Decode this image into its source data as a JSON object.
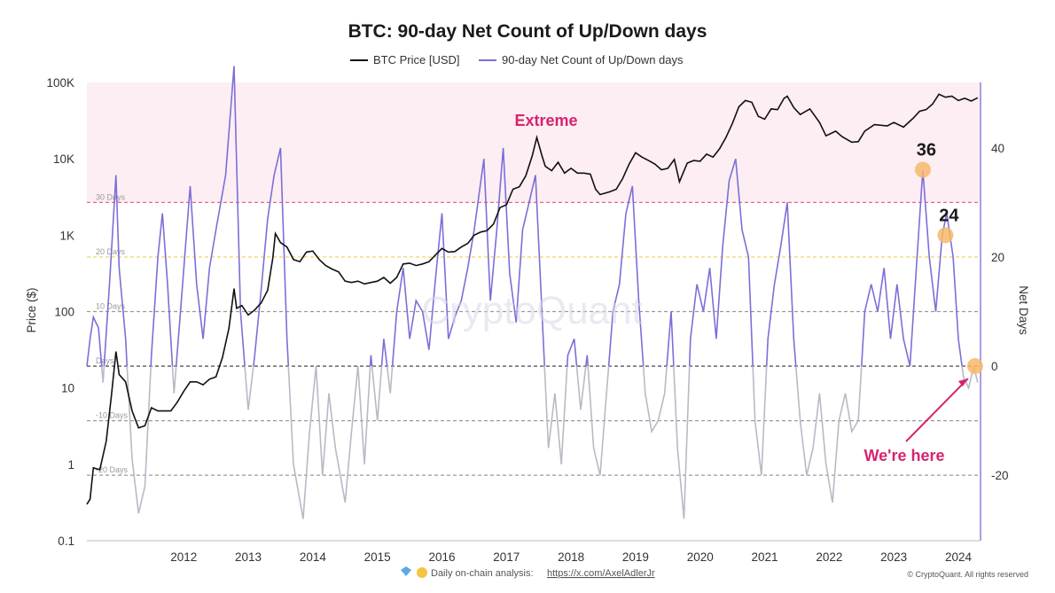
{
  "chart_data": {
    "type": "line",
    "title": "BTC: 90-day Net Count of Up/Down days",
    "legend": [
      "BTC Price [USD]",
      "90-day Net Count of Up/Down days"
    ],
    "legend_placement": "top-center",
    "x_ticks": [
      "2012",
      "2013",
      "2014",
      "2015",
      "2016",
      "2017",
      "2018",
      "2019",
      "2020",
      "2021",
      "2022",
      "2023",
      "2024"
    ],
    "xlim": [
      2011.0,
      2024.83
    ],
    "y_left": {
      "label": "Price ($)",
      "scale": "log",
      "range": [
        0.1,
        100000
      ],
      "ticks": [
        "0.1",
        "1",
        "10",
        "100",
        "1K",
        "10K",
        "100K"
      ]
    },
    "y_right": {
      "label": "Net Days",
      "range": [
        -32,
        52
      ],
      "ticks": [
        "-20",
        "0",
        "20",
        "40"
      ]
    },
    "threshold_lines": [
      {
        "label": "30 Days",
        "value": 30,
        "color": "#e06a8c"
      },
      {
        "label": "20 Days",
        "value": 20,
        "color": "#e8d35a"
      },
      {
        "label": "10 Days",
        "value": 10,
        "color": "#9a9a9a"
      },
      {
        "label": "Days",
        "value": 0,
        "color": "#333333"
      },
      {
        "label": "-10 Days",
        "value": -10,
        "color": "#9a9a9a"
      },
      {
        "label": "-20 Days",
        "value": -20,
        "color": "#9a9a9a"
      }
    ],
    "extreme_zone": {
      "label": "Extreme",
      "from": 30,
      "color": "#fdeef3"
    },
    "series": [
      {
        "name": "BTC Price [USD]",
        "axis": "left",
        "color": "#111111",
        "points": [
          [
            2011.0,
            0.3
          ],
          [
            2011.05,
            0.35
          ],
          [
            2011.1,
            0.9
          ],
          [
            2011.2,
            0.85
          ],
          [
            2011.3,
            2
          ],
          [
            2011.38,
            8
          ],
          [
            2011.45,
            30
          ],
          [
            2011.5,
            15
          ],
          [
            2011.6,
            12
          ],
          [
            2011.7,
            5
          ],
          [
            2011.8,
            3
          ],
          [
            2011.9,
            3.2
          ],
          [
            2012.0,
            5.5
          ],
          [
            2012.1,
            5
          ],
          [
            2012.2,
            5
          ],
          [
            2012.3,
            5
          ],
          [
            2012.4,
            6.5
          ],
          [
            2012.5,
            9
          ],
          [
            2012.6,
            12
          ],
          [
            2012.7,
            12
          ],
          [
            2012.8,
            11
          ],
          [
            2012.9,
            13
          ],
          [
            2013.0,
            14
          ],
          [
            2013.1,
            25
          ],
          [
            2013.2,
            60
          ],
          [
            2013.28,
            200
          ],
          [
            2013.32,
            110
          ],
          [
            2013.4,
            120
          ],
          [
            2013.5,
            90
          ],
          [
            2013.6,
            105
          ],
          [
            2013.7,
            130
          ],
          [
            2013.8,
            190
          ],
          [
            2013.88,
            500
          ],
          [
            2013.92,
            1050
          ],
          [
            2014.0,
            800
          ],
          [
            2014.1,
            700
          ],
          [
            2014.2,
            480
          ],
          [
            2014.3,
            450
          ],
          [
            2014.4,
            600
          ],
          [
            2014.5,
            620
          ],
          [
            2014.6,
            480
          ],
          [
            2014.7,
            400
          ],
          [
            2014.8,
            360
          ],
          [
            2014.9,
            330
          ],
          [
            2015.0,
            250
          ],
          [
            2015.1,
            240
          ],
          [
            2015.2,
            250
          ],
          [
            2015.3,
            230
          ],
          [
            2015.4,
            240
          ],
          [
            2015.5,
            250
          ],
          [
            2015.6,
            280
          ],
          [
            2015.7,
            235
          ],
          [
            2015.8,
            280
          ],
          [
            2015.9,
            420
          ],
          [
            2016.0,
            430
          ],
          [
            2016.1,
            400
          ],
          [
            2016.2,
            420
          ],
          [
            2016.3,
            450
          ],
          [
            2016.4,
            550
          ],
          [
            2016.5,
            670
          ],
          [
            2016.6,
            600
          ],
          [
            2016.7,
            610
          ],
          [
            2016.8,
            700
          ],
          [
            2016.9,
            780
          ],
          [
            2017.0,
            1000
          ],
          [
            2017.1,
            1100
          ],
          [
            2017.2,
            1150
          ],
          [
            2017.3,
            1400
          ],
          [
            2017.4,
            2300
          ],
          [
            2017.5,
            2500
          ],
          [
            2017.6,
            4000
          ],
          [
            2017.7,
            4300
          ],
          [
            2017.8,
            6000
          ],
          [
            2017.9,
            11000
          ],
          [
            2017.97,
            19000
          ],
          [
            2018.05,
            11000
          ],
          [
            2018.1,
            8000
          ],
          [
            2018.2,
            7000
          ],
          [
            2018.3,
            9000
          ],
          [
            2018.4,
            6500
          ],
          [
            2018.5,
            7500
          ],
          [
            2018.6,
            6500
          ],
          [
            2018.7,
            6500
          ],
          [
            2018.8,
            6300
          ],
          [
            2018.88,
            4000
          ],
          [
            2018.95,
            3400
          ],
          [
            2019.1,
            3700
          ],
          [
            2019.2,
            4000
          ],
          [
            2019.3,
            5500
          ],
          [
            2019.4,
            8500
          ],
          [
            2019.5,
            12000
          ],
          [
            2019.6,
            10500
          ],
          [
            2019.7,
            9500
          ],
          [
            2019.8,
            8500
          ],
          [
            2019.9,
            7200
          ],
          [
            2020.0,
            7500
          ],
          [
            2020.1,
            9800
          ],
          [
            2020.18,
            5000
          ],
          [
            2020.3,
            8800
          ],
          [
            2020.4,
            9500
          ],
          [
            2020.5,
            9300
          ],
          [
            2020.6,
            11500
          ],
          [
            2020.7,
            10500
          ],
          [
            2020.8,
            13500
          ],
          [
            2020.9,
            19000
          ],
          [
            2021.0,
            29000
          ],
          [
            2021.1,
            48000
          ],
          [
            2021.2,
            58000
          ],
          [
            2021.3,
            55000
          ],
          [
            2021.4,
            36000
          ],
          [
            2021.5,
            33000
          ],
          [
            2021.6,
            45000
          ],
          [
            2021.7,
            44000
          ],
          [
            2021.8,
            62000
          ],
          [
            2021.85,
            66000
          ],
          [
            2021.95,
            47000
          ],
          [
            2022.05,
            38000
          ],
          [
            2022.2,
            45000
          ],
          [
            2022.35,
            30000
          ],
          [
            2022.45,
            20000
          ],
          [
            2022.6,
            23000
          ],
          [
            2022.7,
            19500
          ],
          [
            2022.85,
            16500
          ],
          [
            2022.95,
            16800
          ],
          [
            2023.05,
            23000
          ],
          [
            2023.2,
            28000
          ],
          [
            2023.4,
            27000
          ],
          [
            2023.5,
            30000
          ],
          [
            2023.65,
            26000
          ],
          [
            2023.8,
            34000
          ],
          [
            2023.9,
            42000
          ],
          [
            2024.0,
            44000
          ],
          [
            2024.1,
            52000
          ],
          [
            2024.2,
            70000
          ],
          [
            2024.3,
            64000
          ],
          [
            2024.4,
            66000
          ],
          [
            2024.5,
            58000
          ],
          [
            2024.6,
            62000
          ],
          [
            2024.7,
            57000
          ],
          [
            2024.8,
            63000
          ]
        ]
      },
      {
        "name": "90-day Net Count of Up/Down days",
        "axis": "right",
        "color_positive": "#7b6fd8",
        "color_negative": "#b9b9c6",
        "points": [
          [
            2011.0,
            0
          ],
          [
            2011.05,
            5
          ],
          [
            2011.1,
            9
          ],
          [
            2011.18,
            7
          ],
          [
            2011.25,
            -3
          ],
          [
            2011.35,
            15
          ],
          [
            2011.45,
            35
          ],
          [
            2011.5,
            18
          ],
          [
            2011.6,
            5
          ],
          [
            2011.7,
            -17
          ],
          [
            2011.8,
            -27
          ],
          [
            2011.9,
            -22
          ],
          [
            2012.0,
            2
          ],
          [
            2012.1,
            20
          ],
          [
            2012.17,
            28
          ],
          [
            2012.25,
            15
          ],
          [
            2012.35,
            -5
          ],
          [
            2012.45,
            10
          ],
          [
            2012.6,
            33
          ],
          [
            2012.7,
            15
          ],
          [
            2012.8,
            5
          ],
          [
            2012.9,
            18
          ],
          [
            2013.0,
            25
          ],
          [
            2013.15,
            35
          ],
          [
            2013.28,
            55
          ],
          [
            2013.38,
            10
          ],
          [
            2013.5,
            -8
          ],
          [
            2013.6,
            2
          ],
          [
            2013.7,
            14
          ],
          [
            2013.8,
            27
          ],
          [
            2013.9,
            35
          ],
          [
            2014.0,
            40
          ],
          [
            2014.1,
            5
          ],
          [
            2014.2,
            -18
          ],
          [
            2014.35,
            -28
          ],
          [
            2014.45,
            -12
          ],
          [
            2014.55,
            0
          ],
          [
            2014.65,
            -20
          ],
          [
            2014.75,
            -5
          ],
          [
            2014.85,
            -15
          ],
          [
            2015.0,
            -25
          ],
          [
            2015.1,
            -12
          ],
          [
            2015.2,
            0
          ],
          [
            2015.3,
            -18
          ],
          [
            2015.4,
            2
          ],
          [
            2015.5,
            -10
          ],
          [
            2015.6,
            5
          ],
          [
            2015.7,
            -5
          ],
          [
            2015.8,
            10
          ],
          [
            2015.9,
            18
          ],
          [
            2016.0,
            5
          ],
          [
            2016.1,
            12
          ],
          [
            2016.2,
            10
          ],
          [
            2016.3,
            3
          ],
          [
            2016.4,
            16
          ],
          [
            2016.5,
            28
          ],
          [
            2016.6,
            5
          ],
          [
            2016.7,
            9
          ],
          [
            2016.8,
            12
          ],
          [
            2016.9,
            18
          ],
          [
            2017.0,
            25
          ],
          [
            2017.15,
            38
          ],
          [
            2017.25,
            12
          ],
          [
            2017.35,
            25
          ],
          [
            2017.45,
            40
          ],
          [
            2017.55,
            17
          ],
          [
            2017.65,
            8
          ],
          [
            2017.75,
            25
          ],
          [
            2017.85,
            30
          ],
          [
            2017.95,
            35
          ],
          [
            2018.05,
            10
          ],
          [
            2018.15,
            -15
          ],
          [
            2018.25,
            -5
          ],
          [
            2018.35,
            -18
          ],
          [
            2018.45,
            2
          ],
          [
            2018.55,
            5
          ],
          [
            2018.65,
            -8
          ],
          [
            2018.75,
            2
          ],
          [
            2018.85,
            -15
          ],
          [
            2018.95,
            -20
          ],
          [
            2019.05,
            -5
          ],
          [
            2019.15,
            10
          ],
          [
            2019.25,
            15
          ],
          [
            2019.35,
            28
          ],
          [
            2019.45,
            33
          ],
          [
            2019.55,
            12
          ],
          [
            2019.65,
            -5
          ],
          [
            2019.75,
            -12
          ],
          [
            2019.85,
            -10
          ],
          [
            2019.95,
            -5
          ],
          [
            2020.05,
            10
          ],
          [
            2020.15,
            -15
          ],
          [
            2020.25,
            -28
          ],
          [
            2020.35,
            5
          ],
          [
            2020.45,
            15
          ],
          [
            2020.55,
            10
          ],
          [
            2020.65,
            18
          ],
          [
            2020.75,
            5
          ],
          [
            2020.85,
            22
          ],
          [
            2020.95,
            34
          ],
          [
            2021.05,
            38
          ],
          [
            2021.15,
            25
          ],
          [
            2021.25,
            20
          ],
          [
            2021.35,
            -10
          ],
          [
            2021.45,
            -20
          ],
          [
            2021.55,
            5
          ],
          [
            2021.65,
            15
          ],
          [
            2021.75,
            22
          ],
          [
            2021.85,
            30
          ],
          [
            2021.95,
            5
          ],
          [
            2022.05,
            -10
          ],
          [
            2022.15,
            -20
          ],
          [
            2022.25,
            -15
          ],
          [
            2022.35,
            -5
          ],
          [
            2022.45,
            -18
          ],
          [
            2022.55,
            -25
          ],
          [
            2022.65,
            -10
          ],
          [
            2022.75,
            -5
          ],
          [
            2022.85,
            -12
          ],
          [
            2022.95,
            -10
          ],
          [
            2023.05,
            10
          ],
          [
            2023.15,
            15
          ],
          [
            2023.25,
            10
          ],
          [
            2023.35,
            18
          ],
          [
            2023.45,
            5
          ],
          [
            2023.55,
            15
          ],
          [
            2023.65,
            5
          ],
          [
            2023.75,
            0
          ],
          [
            2023.85,
            18
          ],
          [
            2023.95,
            36
          ],
          [
            2024.05,
            20
          ],
          [
            2024.15,
            10
          ],
          [
            2024.25,
            24
          ],
          [
            2024.32,
            28
          ],
          [
            2024.42,
            20
          ],
          [
            2024.5,
            5
          ],
          [
            2024.58,
            -2
          ],
          [
            2024.66,
            -4
          ],
          [
            2024.74,
            0
          ],
          [
            2024.8,
            -3
          ]
        ]
      }
    ],
    "highlights": [
      {
        "label": "36",
        "x": 2023.95,
        "y": 36
      },
      {
        "label": "24",
        "x": 2024.3,
        "y": 24
      },
      {
        "label": "",
        "x": 2024.76,
        "y": 0
      }
    ],
    "annotations": {
      "extreme": "Extreme",
      "here": "We're here"
    },
    "watermark": "CryptoQuant",
    "footer": {
      "text": "Daily on-chain analysis:",
      "link": "https://x.com/AxelAdlerJr",
      "copyright": "© CryptoQuant. All rights reserved"
    }
  }
}
